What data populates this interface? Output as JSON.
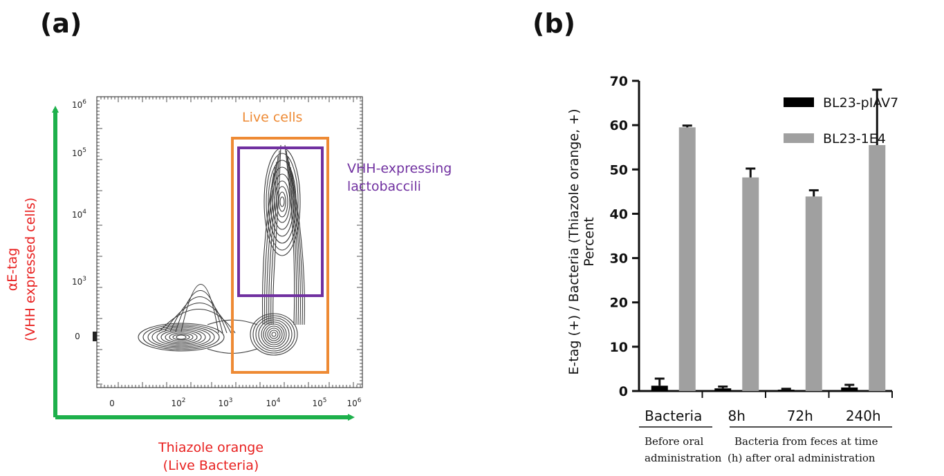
{
  "panel_a": {
    "label": "(a)",
    "x_title_line1": "Thiazole orange",
    "x_title_line2": "(Live Bacteria)",
    "y_title_line1": "αE-tag",
    "y_title_line2": "(VHH expressed cells)",
    "gate_live": "Live cells",
    "gate_vhh_line1": "VHH-expressing",
    "gate_vhh_line2": "lactobaccili",
    "x_ticks": [
      "0",
      "10",
      "10",
      "10",
      "10",
      "10"
    ],
    "x_tick_exps": [
      "",
      "2",
      "3",
      "4",
      "5",
      "6"
    ],
    "y_ticks": [
      "0",
      "10",
      "10",
      "10",
      "10"
    ],
    "y_tick_exps": [
      "",
      "3",
      "4",
      "5",
      "6"
    ],
    "colors": {
      "axis_arrow": "#1db04b",
      "axis_title": "#e8201f",
      "gate_live": "#ee8a34",
      "gate_vhh": "#7030a0",
      "contour": "#3a3a3a"
    }
  },
  "panel_b": {
    "label": "(b)",
    "ylabel_line1": "E-tag (+) /  Bacteria (Thiazole orange, +)",
    "ylabel_line2": "Percent",
    "group_labels": {
      "before": "Before oral",
      "before2": "administration",
      "after": "Bacteria from feces at time",
      "after2": "(h) after oral administration"
    }
  },
  "chart_data": {
    "type": "bar",
    "categories": [
      "Bacteria",
      "8h",
      "72h",
      "240h"
    ],
    "series": [
      {
        "name": "BL23-pIAV7",
        "values": [
          1.2,
          0.6,
          0.3,
          0.8
        ],
        "errors": [
          1.6,
          0.4,
          0.2,
          0.6
        ],
        "color": "#000000"
      },
      {
        "name": "BL23-1E4",
        "values": [
          59.5,
          48.2,
          43.9,
          55.5
        ],
        "errors": [
          0.4,
          2.0,
          1.4,
          12.5
        ],
        "color": "#a0a0a0"
      }
    ],
    "ylim": [
      0,
      70
    ],
    "y_ticks": [
      0,
      10,
      20,
      30,
      40,
      50,
      60,
      70
    ],
    "legend": "top-right",
    "grid": false
  }
}
